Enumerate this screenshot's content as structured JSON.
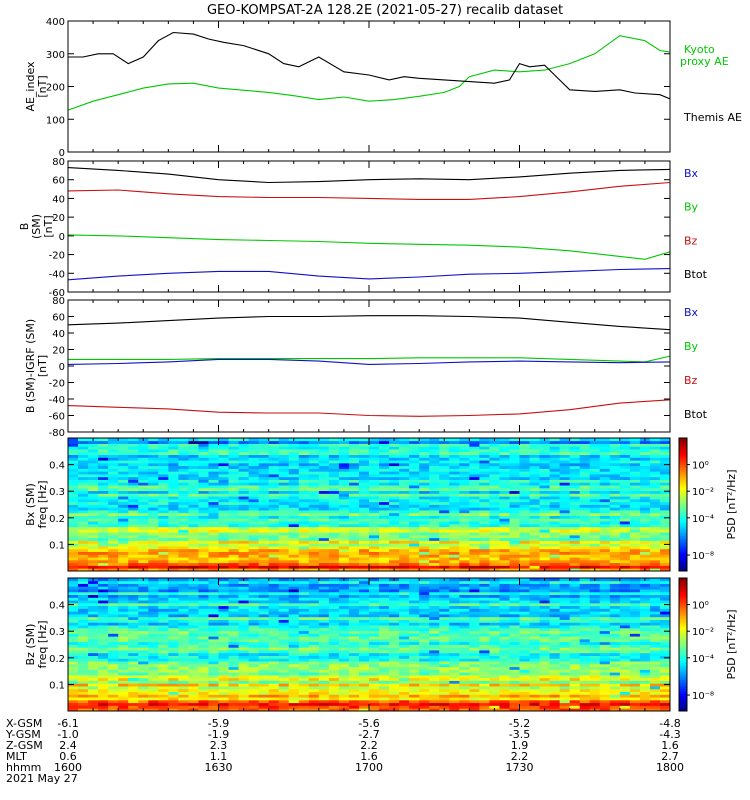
{
  "title": "GEO-KOMPSAT-2A 128.2E (2021-05-27) recalib dataset",
  "chart_data": [
    {
      "type": "line",
      "ylabel": [
        "AE_index",
        "[nT]"
      ],
      "ylim": [
        0,
        400
      ],
      "yticks": [
        "0",
        "100",
        "200",
        "300",
        "400"
      ],
      "xlim": [
        0,
        120
      ],
      "x_unit": "minutes after 1600 UT",
      "legend": [
        {
          "label": "Kyoto",
          "color": "#00c800"
        },
        {
          "label": "proxy AE",
          "color": "#00c800"
        },
        {
          "label": "Themis AE",
          "color": "#000000"
        }
      ],
      "series": [
        {
          "name": "Kyoto proxy AE",
          "color": "#00c800",
          "x": [
            0,
            5,
            10,
            15,
            20,
            25,
            30,
            40,
            45,
            50,
            55,
            60,
            65,
            70,
            75,
            78,
            80,
            85,
            90,
            95,
            100,
            105,
            110,
            115,
            118,
            120
          ],
          "y": [
            128,
            155,
            175,
            195,
            208,
            210,
            195,
            182,
            172,
            160,
            168,
            155,
            160,
            170,
            182,
            200,
            230,
            250,
            245,
            250,
            270,
            300,
            355,
            340,
            310,
            305
          ]
        },
        {
          "name": "Themis AE",
          "color": "#000000",
          "x": [
            0,
            3,
            6,
            9,
            12,
            15,
            18,
            21,
            25,
            28,
            31,
            35,
            40,
            43,
            46,
            50,
            55,
            60,
            64,
            67,
            70,
            75,
            80,
            85,
            88,
            90,
            92,
            95,
            97,
            100,
            105,
            110,
            113,
            118,
            120
          ],
          "y": [
            290,
            290,
            300,
            300,
            270,
            290,
            340,
            365,
            360,
            345,
            335,
            325,
            300,
            270,
            260,
            290,
            245,
            235,
            220,
            230,
            225,
            220,
            215,
            210,
            220,
            270,
            260,
            265,
            235,
            190,
            185,
            190,
            180,
            175,
            162
          ]
        }
      ]
    },
    {
      "type": "line",
      "ylabel": [
        "B",
        "(SM)",
        "[nT]"
      ],
      "ylim": [
        -60,
        80
      ],
      "yticks": [
        "-60",
        "-40",
        "-20",
        "0",
        "20",
        "40",
        "60",
        "80"
      ],
      "xlim": [
        0,
        120
      ],
      "legend": [
        {
          "label": "Bx",
          "color": "#1010c8"
        },
        {
          "label": "By",
          "color": "#00c800"
        },
        {
          "label": "Bz",
          "color": "#c81010"
        },
        {
          "label": "Btot",
          "color": "#000000"
        }
      ],
      "series": [
        {
          "name": "Btot",
          "color": "#000000",
          "x": [
            0,
            10,
            20,
            30,
            40,
            50,
            60,
            70,
            80,
            90,
            100,
            110,
            120
          ],
          "y": [
            73,
            70,
            66,
            60,
            57,
            58,
            60,
            61,
            60,
            63,
            67,
            70,
            71
          ]
        },
        {
          "name": "Bz",
          "color": "#c81010",
          "x": [
            0,
            10,
            20,
            30,
            40,
            50,
            60,
            70,
            80,
            90,
            100,
            110,
            120
          ],
          "y": [
            48,
            49,
            45,
            42,
            41,
            41,
            40,
            39,
            39,
            42,
            47,
            53,
            57
          ]
        },
        {
          "name": "By",
          "color": "#00c800",
          "x": [
            0,
            10,
            20,
            30,
            40,
            50,
            60,
            70,
            80,
            90,
            100,
            110,
            115,
            120
          ],
          "y": [
            1,
            0,
            -2,
            -4,
            -5,
            -6,
            -8,
            -9,
            -10,
            -12,
            -16,
            -22,
            -25,
            -17
          ]
        },
        {
          "name": "Bx",
          "color": "#1010c8",
          "x": [
            0,
            10,
            20,
            30,
            40,
            50,
            60,
            70,
            80,
            90,
            100,
            110,
            120
          ],
          "y": [
            -47,
            -43,
            -40,
            -38,
            -38,
            -43,
            -46,
            -44,
            -41,
            -40,
            -38,
            -36,
            -35
          ]
        }
      ]
    },
    {
      "type": "line",
      "ylabel": [
        "B (SM)-IGRF (SM)",
        "[nT]"
      ],
      "ylim": [
        -80,
        80
      ],
      "yticks": [
        "-80",
        "-60",
        "-40",
        "-20",
        "0",
        "20",
        "40",
        "60",
        "80"
      ],
      "xlim": [
        0,
        120
      ],
      "legend": [
        {
          "label": "Bx",
          "color": "#1010c8"
        },
        {
          "label": "By",
          "color": "#00c800"
        },
        {
          "label": "Bz",
          "color": "#c81010"
        },
        {
          "label": "Btot",
          "color": "#000000"
        }
      ],
      "series": [
        {
          "name": "Btot",
          "color": "#000000",
          "x": [
            0,
            10,
            20,
            30,
            40,
            50,
            60,
            70,
            80,
            90,
            100,
            110,
            120
          ],
          "y": [
            50,
            52,
            55,
            58,
            60,
            60,
            61,
            61,
            60,
            58,
            53,
            48,
            44
          ]
        },
        {
          "name": "By",
          "color": "#00c800",
          "x": [
            0,
            10,
            20,
            30,
            40,
            50,
            60,
            70,
            80,
            90,
            100,
            110,
            115,
            120
          ],
          "y": [
            8,
            8,
            8,
            9,
            9,
            9,
            9,
            10,
            10,
            10,
            8,
            6,
            5,
            12
          ]
        },
        {
          "name": "Bx",
          "color": "#1010c8",
          "x": [
            0,
            10,
            20,
            30,
            40,
            50,
            60,
            70,
            80,
            90,
            100,
            110,
            120
          ],
          "y": [
            2,
            3,
            5,
            8,
            8,
            6,
            2,
            3,
            5,
            6,
            5,
            4,
            5
          ]
        },
        {
          "name": "Bz",
          "color": "#c81010",
          "x": [
            0,
            10,
            20,
            30,
            40,
            50,
            60,
            70,
            80,
            90,
            100,
            110,
            120
          ],
          "y": [
            -48,
            -50,
            -52,
            -56,
            -57,
            -57,
            -60,
            -61,
            -60,
            -58,
            -53,
            -45,
            -41
          ]
        }
      ]
    },
    {
      "type": "heatmap",
      "ylabel": [
        "Bx (SM)",
        "freq [Hz]"
      ],
      "ylim": [
        0,
        0.5
      ],
      "yticks": [
        "0.1",
        "0.2",
        "0.3",
        "0.4"
      ],
      "ytick_values": [
        0.1,
        0.2,
        0.3,
        0.4
      ],
      "colorbar_label": "PSD [nT²/Hz]",
      "colorbar_ticks": [
        {
          "label": "10⁰",
          "position": 0.8
        },
        {
          "label": "10⁻²",
          "position": 0.6
        },
        {
          "label": "10⁻⁴",
          "position": 0.4
        },
        {
          "label": "10⁻⁸",
          "position": 0.12
        }
      ]
    },
    {
      "type": "heatmap",
      "ylabel": [
        "Bz (SM)",
        "freq [Hz]"
      ],
      "ylim": [
        0,
        0.5
      ],
      "yticks": [
        "0.1",
        "0.2",
        "0.3",
        "0.4"
      ],
      "ytick_values": [
        0.1,
        0.2,
        0.3,
        0.4
      ],
      "colorbar_label": "PSD [nT²/Hz]",
      "colorbar_ticks": [
        {
          "label": "10⁰",
          "position": 0.8
        },
        {
          "label": "10⁻²",
          "position": 0.6
        },
        {
          "label": "10⁻⁴",
          "position": 0.4
        },
        {
          "label": "10⁻⁸",
          "position": 0.12
        }
      ]
    }
  ],
  "footer": {
    "row_labels": [
      "X-GSM",
      "Y-GSM",
      "Z-GSM",
      "MLT",
      "hhmm"
    ],
    "date": "2021 May 27",
    "columns": [
      [
        "-6.1",
        "-1.0",
        "2.4",
        "0.6",
        "1600"
      ],
      [
        "-5.9",
        "-1.9",
        "2.3",
        "1.1",
        "1630"
      ],
      [
        "-5.6",
        "-2.7",
        "2.2",
        "1.6",
        "1700"
      ],
      [
        "-5.2",
        "-3.5",
        "1.9",
        "2.2",
        "1730"
      ],
      [
        "-4.8",
        "-4.3",
        "1.6",
        "2.7",
        "1800"
      ]
    ]
  }
}
